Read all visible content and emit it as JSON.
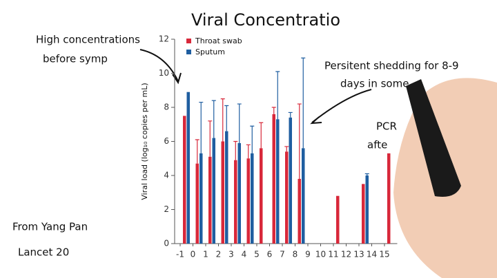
{
  "chart_data": {
    "type": "bar",
    "title": "Viral Concentratio",
    "y_label": "Viral load (log₁₀ copies per mL)",
    "categories": [
      "-1",
      "0",
      "1",
      "2",
      "3",
      "4",
      "5",
      "6",
      "7",
      "8",
      "9",
      "10",
      "11",
      "12",
      "13",
      "14",
      "15"
    ],
    "series": [
      {
        "name": "Throat swab",
        "color": "#d8283a",
        "values": [
          7.5,
          4.7,
          5.1,
          6.0,
          4.9,
          5.0,
          5.6,
          7.6,
          5.4,
          3.8,
          null,
          null,
          2.8,
          null,
          3.5,
          null,
          5.3
        ],
        "errors": [
          null,
          1.4,
          2.1,
          2.5,
          1.1,
          0.8,
          1.5,
          0.4,
          0.3,
          4.4,
          null,
          null,
          null,
          null,
          null,
          null,
          null
        ]
      },
      {
        "name": "Sputum",
        "color": "#1f5ea0",
        "values": [
          8.9,
          5.3,
          6.2,
          6.6,
          5.9,
          5.3,
          null,
          7.3,
          7.4,
          5.6,
          null,
          null,
          null,
          null,
          4.0,
          null,
          null
        ],
        "errors": [
          null,
          3.0,
          2.2,
          1.5,
          2.3,
          1.6,
          null,
          2.8,
          0.3,
          5.3,
          null,
          null,
          null,
          null,
          0.1,
          null,
          null
        ]
      }
    ],
    "ylim": [
      0,
      12
    ],
    "yticks": [
      0,
      2,
      4,
      6,
      8,
      10,
      12
    ],
    "annotations": [
      "High concentrations",
      "before symp",
      "Persitent shedding for 8-9",
      "days in some",
      "PCR",
      "afte",
      "From Yang Pan",
      "Lancet 20"
    ]
  }
}
